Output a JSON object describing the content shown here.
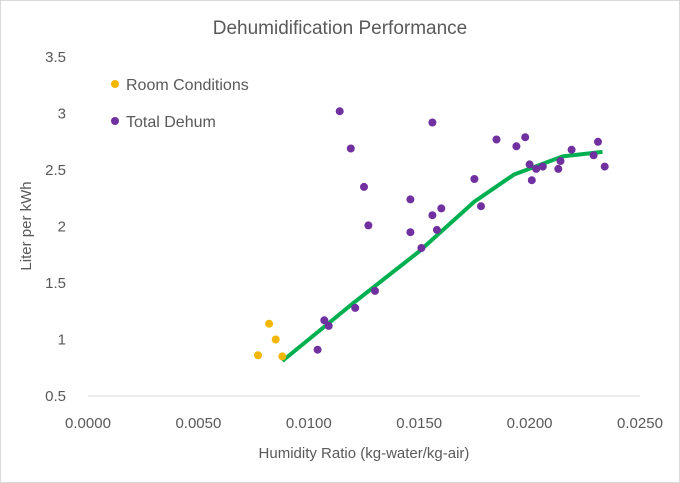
{
  "chart_data": {
    "type": "scatter",
    "title": "Dehumidification  Performance",
    "xlabel": "Humidity Ratio (kg-water/kg-air)",
    "ylabel": "Liter per kWh",
    "xlim": [
      0.0,
      0.025
    ],
    "ylim": [
      0.5,
      3.5
    ],
    "x_ticks": [
      "0.0000",
      "0.0050",
      "0.0100",
      "0.0150",
      "0.0200",
      "0.0250"
    ],
    "y_ticks": [
      "0.5",
      "1",
      "1.5",
      "2",
      "2.5",
      "3",
      "3.5"
    ],
    "grid": false,
    "legend_position": "top-left",
    "series": [
      {
        "name": "Room Conditions",
        "color": "#F2B705",
        "points": [
          [
            0.0077,
            0.86
          ],
          [
            0.0082,
            1.14
          ],
          [
            0.0085,
            1.0
          ],
          [
            0.0088,
            0.85
          ]
        ]
      },
      {
        "name": "Total Dehum",
        "color": "#7030A0",
        "points": [
          [
            0.0104,
            0.91
          ],
          [
            0.0107,
            1.17
          ],
          [
            0.0109,
            1.12
          ],
          [
            0.0114,
            3.02
          ],
          [
            0.0119,
            2.69
          ],
          [
            0.0121,
            1.28
          ],
          [
            0.0125,
            2.35
          ],
          [
            0.0127,
            2.01
          ],
          [
            0.013,
            1.43
          ],
          [
            0.0146,
            2.24
          ],
          [
            0.0146,
            1.95
          ],
          [
            0.0151,
            1.81
          ],
          [
            0.0156,
            2.92
          ],
          [
            0.0156,
            2.1
          ],
          [
            0.0158,
            1.97
          ],
          [
            0.016,
            2.16
          ],
          [
            0.0175,
            2.42
          ],
          [
            0.0178,
            2.18
          ],
          [
            0.0185,
            2.77
          ],
          [
            0.0194,
            2.71
          ],
          [
            0.0198,
            2.79
          ],
          [
            0.02,
            2.55
          ],
          [
            0.0201,
            2.41
          ],
          [
            0.0203,
            2.51
          ],
          [
            0.0206,
            2.53
          ],
          [
            0.0213,
            2.51
          ],
          [
            0.0214,
            2.58
          ],
          [
            0.0219,
            2.68
          ],
          [
            0.0229,
            2.63
          ],
          [
            0.0231,
            2.75
          ],
          [
            0.0234,
            2.53
          ]
        ]
      }
    ],
    "trendline": {
      "color": "#00B050",
      "points": [
        [
          0.0088,
          0.81
        ],
        [
          0.012,
          1.32
        ],
        [
          0.015,
          1.78
        ],
        [
          0.0175,
          2.22
        ],
        [
          0.0193,
          2.46
        ],
        [
          0.0215,
          2.62
        ],
        [
          0.0233,
          2.66
        ]
      ]
    }
  }
}
